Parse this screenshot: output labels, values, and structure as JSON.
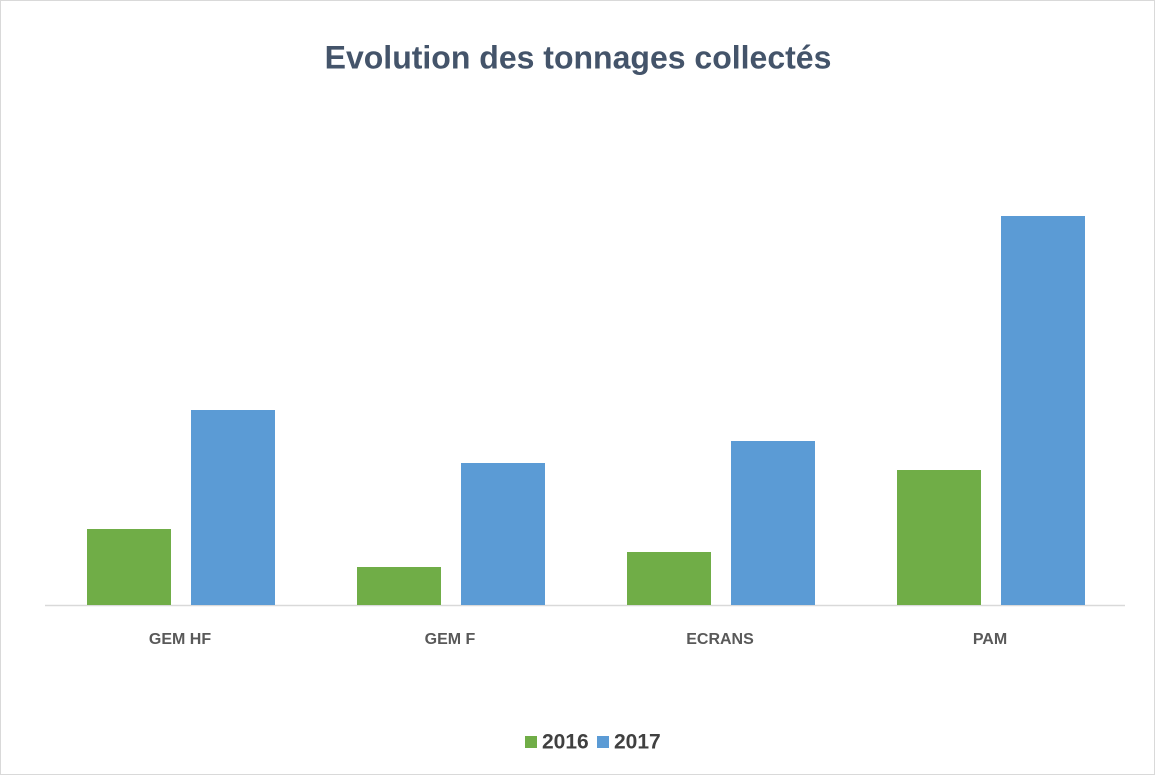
{
  "chart_data": {
    "type": "bar",
    "title": "Evolution des tonnages collectés",
    "categories": [
      "GEM HF",
      "GEM F",
      "ECRANS",
      "PAM"
    ],
    "series": [
      {
        "name": "2016",
        "color": "#70ad47",
        "values": [
          76,
          38,
          53,
          135
        ]
      },
      {
        "name": "2017",
        "color": "#5b9bd5",
        "values": [
          195,
          142,
          164,
          389
        ]
      }
    ],
    "legend": "bottom"
  }
}
